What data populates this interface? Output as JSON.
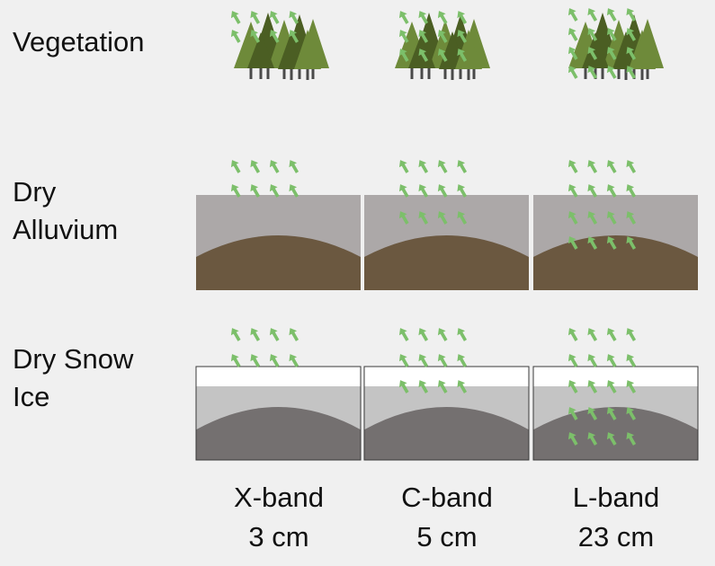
{
  "rows": [
    {
      "label": "Vegetation",
      "surface": "vegetation"
    },
    {
      "label": "Dry\nAlluvium",
      "surface": "dry-alluvium"
    },
    {
      "label": "Dry Snow\nIce",
      "surface": "dry-snow-ice"
    }
  ],
  "bands": [
    {
      "name": "X-band",
      "wavelength": "3 cm",
      "penetration_level": 1
    },
    {
      "name": "C-band",
      "wavelength": "5 cm",
      "penetration_level": 2
    },
    {
      "name": "L-band",
      "wavelength": "23 cm",
      "penetration_level": 3
    }
  ],
  "colors": {
    "background": "#f0f0f0",
    "arrow": "#7cbf6a",
    "tree_dark": "#4b5e23",
    "tree_light": "#6e8a3a",
    "trunk": "#4a4a4a",
    "alluvium_layer": "#aca8a8",
    "alluvium_mound": "#6b5840",
    "snow_top": "#ffffff",
    "snow_layer": "#c4c4c4",
    "ice_mound": "#747070",
    "panel_border": "#3a3a3a"
  },
  "icons": {
    "arrow": "scattering-arrow-icon",
    "tree": "conifer-tree-icon"
  }
}
